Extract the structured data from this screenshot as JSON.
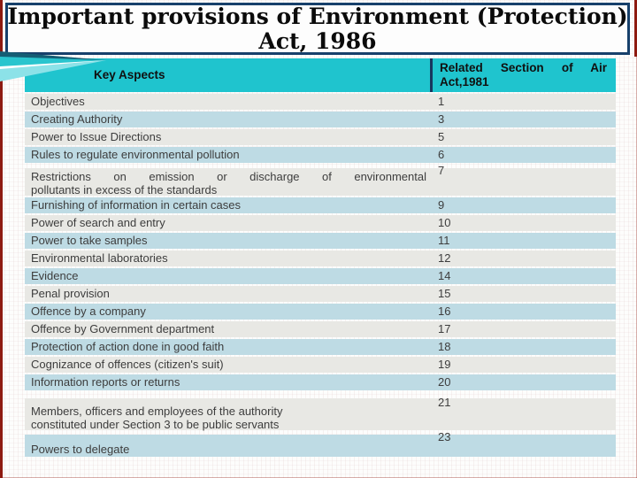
{
  "title": {
    "line1": "Important provisions of Environment (Protection)",
    "line2": "Act, 1986"
  },
  "table": {
    "header": {
      "left": "Key Aspects",
      "right": "Related Section of Air\nAct,1981"
    },
    "rows": [
      {
        "aspect": "Objectives",
        "section": "1"
      },
      {
        "aspect": "Creating Authority",
        "section": "3"
      },
      {
        "aspect": "Power to Issue Directions",
        "section": "5"
      },
      {
        "aspect": "Rules to regulate environmental pollution",
        "section": "6"
      },
      {
        "aspect": "Restrictions on emission or discharge of environmental\npollutants in excess of  the standards",
        "section": "7"
      },
      {
        "aspect": "Furnishing of information in certain cases",
        "section": "9"
      },
      {
        "aspect": "Power of search and entry",
        "section": "10"
      },
      {
        "aspect": "Power to take samples",
        "section": "11"
      },
      {
        "aspect": "Environmental laboratories",
        "section": "12"
      },
      {
        "aspect": "Evidence",
        "section": "14"
      },
      {
        "aspect": "Penal provision",
        "section": "15"
      },
      {
        "aspect": "Offence by a company",
        "section": "16"
      },
      {
        "aspect": "Offence by Government department",
        "section": "17"
      },
      {
        "aspect": "Protection of action done in good faith",
        "section": "18"
      },
      {
        "aspect": "Cognizance of offences (citizen's suit)",
        "section": "19"
      },
      {
        "aspect": "Information reports or returns",
        "section": "20"
      },
      {
        "aspect": "Members, officers and employees of the authority\nconstituted under Section 3 to be public servants",
        "section": "21"
      },
      {
        "aspect": "Powers to delegate",
        "section": "23"
      }
    ]
  },
  "colors": {
    "header_teal": "#1fc4ce",
    "row_gray": "#e8e8e4",
    "row_blue": "#bedbe4",
    "divider_navy": "#17375e",
    "title_border_navy": "#17406b",
    "edge_red": "#8e1a10"
  }
}
